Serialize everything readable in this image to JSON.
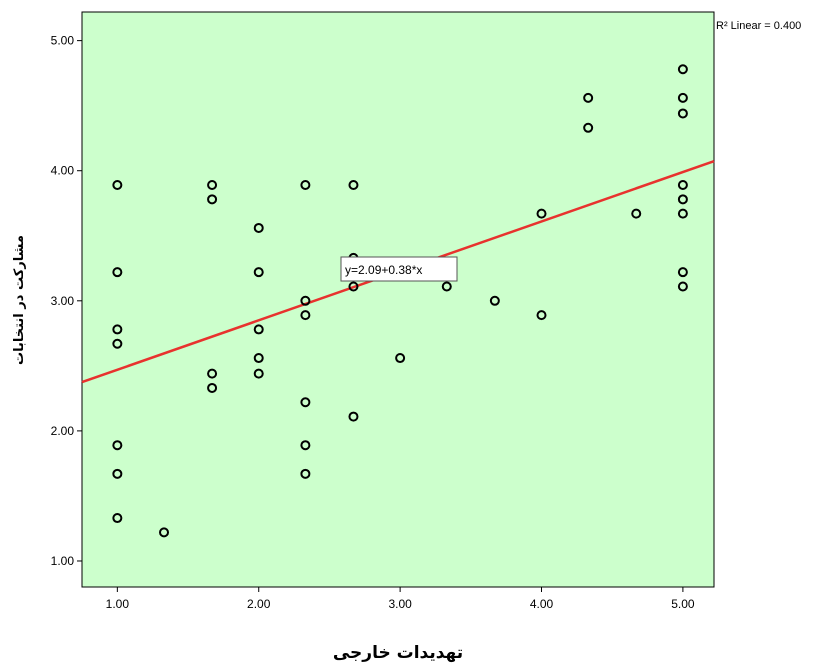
{
  "chart_data": {
    "type": "scatter",
    "title": "",
    "xlabel": "تهدیدات خارجی",
    "ylabel": "مشارکت در انتخابات",
    "xlim": [
      0.75,
      5.22
    ],
    "ylim": [
      0.8,
      5.22
    ],
    "x_ticks": [
      "1.00",
      "2.00",
      "3.00",
      "4.00",
      "5.00"
    ],
    "y_ticks": [
      "1.00",
      "2.00",
      "3.00",
      "4.00",
      "5.00"
    ],
    "plot_background": "#ccffcc",
    "marker_color": "#000000",
    "fit_line_color": "#e8322e",
    "grid": false,
    "fit_line": {
      "intercept": 2.09,
      "slope": 0.38
    },
    "r2_label": "R² Linear = 0.400",
    "equation_label": "y=2.09+0.38*x",
    "points": [
      {
        "x": 1.0,
        "y": 3.89
      },
      {
        "x": 1.0,
        "y": 3.22
      },
      {
        "x": 1.0,
        "y": 2.78
      },
      {
        "x": 1.0,
        "y": 2.67
      },
      {
        "x": 1.0,
        "y": 1.89
      },
      {
        "x": 1.0,
        "y": 1.67
      },
      {
        "x": 1.0,
        "y": 1.33
      },
      {
        "x": 1.33,
        "y": 1.22
      },
      {
        "x": 1.67,
        "y": 3.89
      },
      {
        "x": 1.67,
        "y": 3.78
      },
      {
        "x": 1.67,
        "y": 2.44
      },
      {
        "x": 1.67,
        "y": 2.33
      },
      {
        "x": 2.0,
        "y": 3.56
      },
      {
        "x": 2.0,
        "y": 3.22
      },
      {
        "x": 2.0,
        "y": 2.78
      },
      {
        "x": 2.0,
        "y": 2.56
      },
      {
        "x": 2.0,
        "y": 2.44
      },
      {
        "x": 2.33,
        "y": 3.89
      },
      {
        "x": 2.33,
        "y": 3.0
      },
      {
        "x": 2.33,
        "y": 2.89
      },
      {
        "x": 2.33,
        "y": 2.22
      },
      {
        "x": 2.33,
        "y": 1.89
      },
      {
        "x": 2.33,
        "y": 1.67
      },
      {
        "x": 2.67,
        "y": 3.89
      },
      {
        "x": 2.67,
        "y": 3.33
      },
      {
        "x": 2.67,
        "y": 3.11
      },
      {
        "x": 2.67,
        "y": 2.11
      },
      {
        "x": 3.0,
        "y": 2.56
      },
      {
        "x": 3.33,
        "y": 3.11
      },
      {
        "x": 3.67,
        "y": 3.0
      },
      {
        "x": 4.0,
        "y": 3.67
      },
      {
        "x": 4.0,
        "y": 2.89
      },
      {
        "x": 4.33,
        "y": 4.56
      },
      {
        "x": 4.33,
        "y": 4.33
      },
      {
        "x": 4.67,
        "y": 3.67
      },
      {
        "x": 5.0,
        "y": 4.78
      },
      {
        "x": 5.0,
        "y": 4.56
      },
      {
        "x": 5.0,
        "y": 4.44
      },
      {
        "x": 5.0,
        "y": 3.89
      },
      {
        "x": 5.0,
        "y": 3.78
      },
      {
        "x": 5.0,
        "y": 3.67
      },
      {
        "x": 5.0,
        "y": 3.22
      },
      {
        "x": 5.0,
        "y": 3.11
      }
    ]
  }
}
